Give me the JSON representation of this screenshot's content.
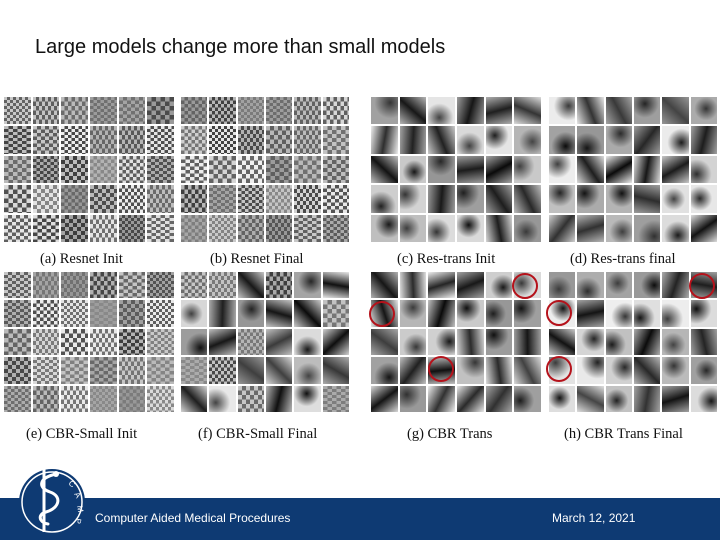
{
  "slide": {
    "title": "Large models change more than small models"
  },
  "figure": {
    "captions": {
      "a": "(a) Resnet Init",
      "b": "(b) Resnet Final",
      "c": "(c) Res-trans Init",
      "d": "(d) Res-trans final",
      "e": "(e) CBR-Small Init",
      "f": "(f) CBR-Small Final",
      "g": "(g) CBR Trans",
      "h": "(h) CBR Trans Final"
    },
    "highlight_color": "#b5121b"
  },
  "footer": {
    "left_text": "Computer Aided Medical Procedures",
    "right_text": "March 12, 2021",
    "background": "#0e3a73"
  },
  "logo": {
    "name": "camp-logo-icon",
    "lettering": "CAMP"
  }
}
